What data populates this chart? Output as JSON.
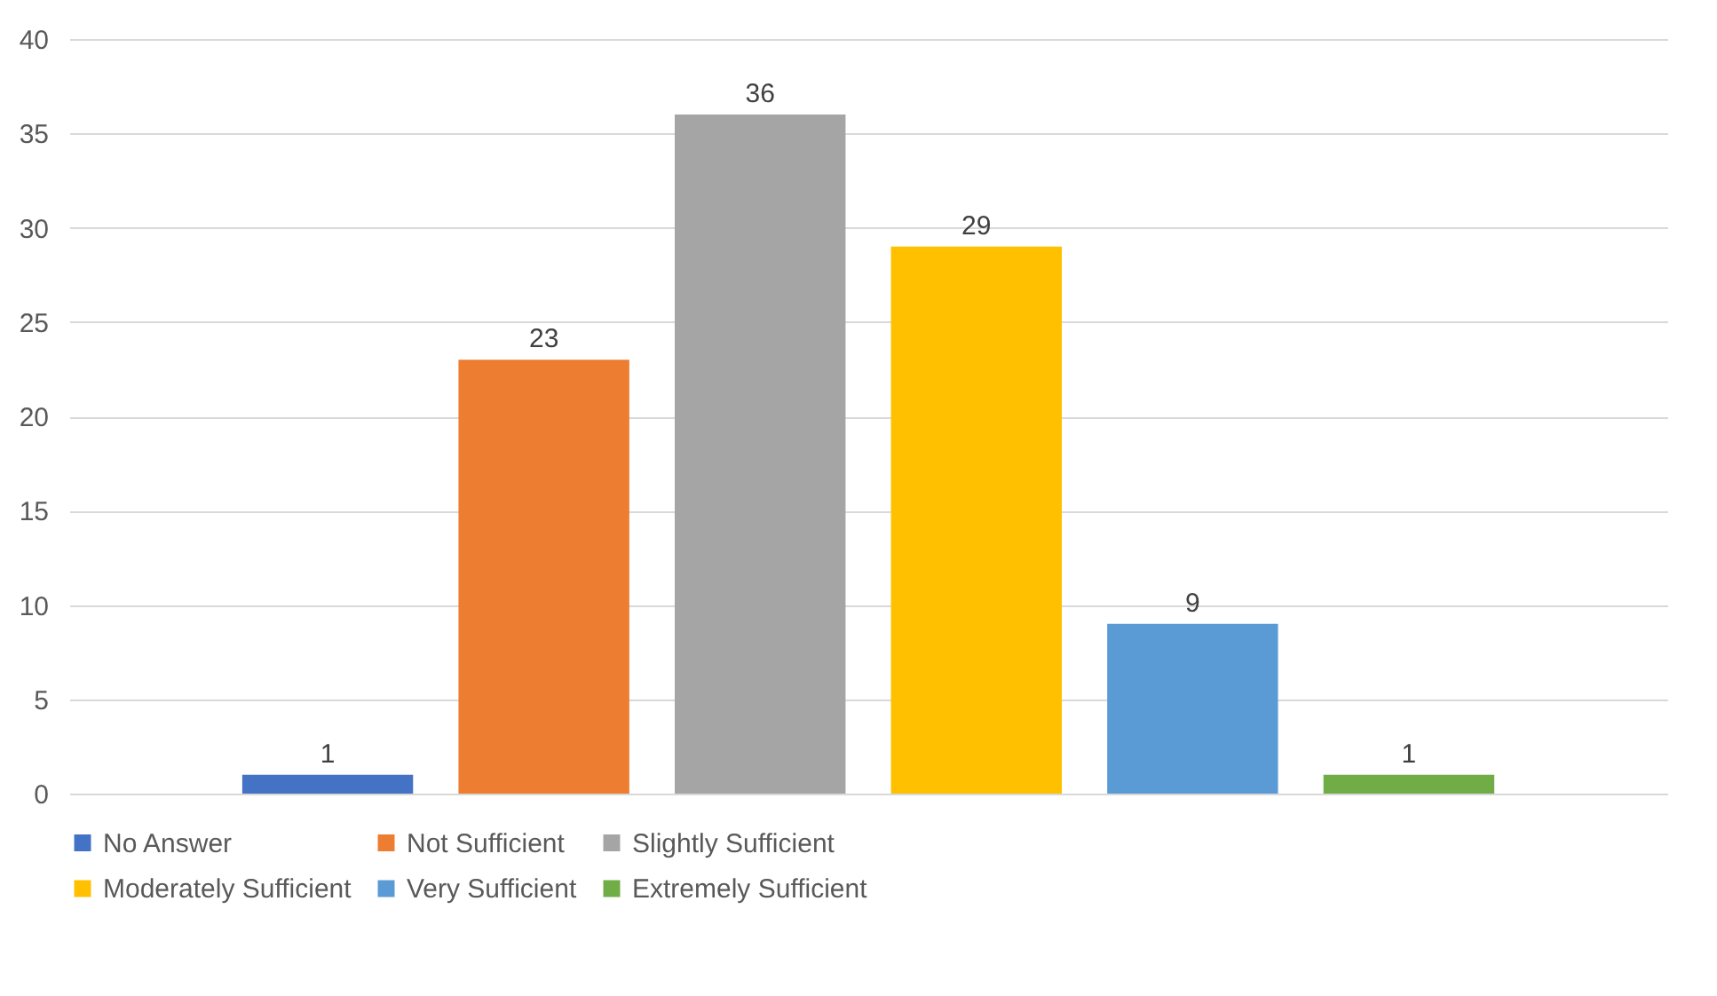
{
  "chart_data": {
    "type": "bar",
    "categories": [
      null
    ],
    "series": [
      {
        "name": "No Answer",
        "color": "#4472c4",
        "values": [
          1
        ]
      },
      {
        "name": "Not Sufficient",
        "color": "#ed7d31",
        "values": [
          23
        ]
      },
      {
        "name": "Slightly Sufficient",
        "color": "#a5a5a5",
        "values": [
          36
        ]
      },
      {
        "name": "Moderately Sufficient",
        "color": "#ffc000",
        "values": [
          29
        ]
      },
      {
        "name": "Very Sufficient",
        "color": "#5b9bd5",
        "values": [
          9
        ]
      },
      {
        "name": "Extremely Sufficient",
        "color": "#70ad47",
        "values": [
          1
        ]
      }
    ],
    "ylim": [
      0,
      40
    ],
    "yticks": [
      0,
      5,
      10,
      15,
      20,
      25,
      30,
      35,
      40
    ],
    "grid": "y",
    "legend": "bottom",
    "data_labels": true
  }
}
